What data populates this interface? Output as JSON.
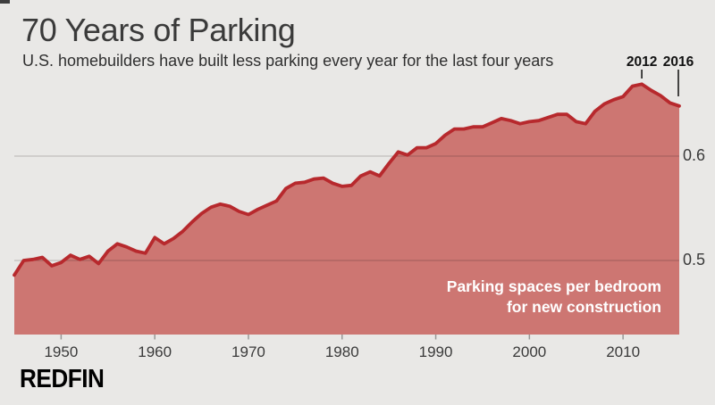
{
  "header": {
    "title": "70 Years of Parking",
    "subtitle": "U.S. homebuilders have built less parking every year for the last four years"
  },
  "overlay_note": {
    "line1": "Parking spaces per bedroom",
    "line2": "for new construction"
  },
  "branding": {
    "logo_text": "Redfin",
    "logo_display": "REDFIN",
    "logo_color": "#c3262c"
  },
  "chart_data": {
    "type": "area",
    "title": "70 Years of Parking",
    "subtitle": "U.S. homebuilders have built less parking every year for the last four years",
    "series_name": "Parking spaces per bedroom for new construction",
    "xlim": [
      1945,
      2016
    ],
    "ylim_shown_ticks": [
      0.5,
      0.6
    ],
    "grid": "horizontal",
    "legend": "none",
    "x_ticks": [
      1950,
      1960,
      1970,
      1980,
      1990,
      2000,
      2010
    ],
    "y_ticks": [
      0.5,
      0.6
    ],
    "y_tick_labels": [
      "0.5",
      "0.6"
    ],
    "annotations": [
      {
        "label": "2012",
        "year": 2012,
        "tick_length": 10
      },
      {
        "label": "2016",
        "year": 2016,
        "tick_length": 30
      }
    ],
    "years": [
      1945,
      1946,
      1947,
      1948,
      1949,
      1950,
      1951,
      1952,
      1953,
      1954,
      1955,
      1956,
      1957,
      1958,
      1959,
      1960,
      1961,
      1962,
      1963,
      1964,
      1965,
      1966,
      1967,
      1968,
      1969,
      1970,
      1971,
      1972,
      1973,
      1974,
      1975,
      1976,
      1977,
      1978,
      1979,
      1980,
      1981,
      1982,
      1983,
      1984,
      1985,
      1986,
      1987,
      1988,
      1989,
      1990,
      1991,
      1992,
      1993,
      1994,
      1995,
      1996,
      1997,
      1998,
      1999,
      2000,
      2001,
      2002,
      2003,
      2004,
      2005,
      2006,
      2007,
      2008,
      2009,
      2010,
      2011,
      2012,
      2013,
      2014,
      2015,
      2016
    ],
    "values": [
      0.486,
      0.5,
      0.501,
      0.503,
      0.495,
      0.498,
      0.505,
      0.501,
      0.504,
      0.497,
      0.509,
      0.516,
      0.513,
      0.509,
      0.507,
      0.522,
      0.516,
      0.521,
      0.528,
      0.537,
      0.545,
      0.551,
      0.554,
      0.552,
      0.547,
      0.544,
      0.549,
      0.553,
      0.557,
      0.569,
      0.574,
      0.575,
      0.578,
      0.579,
      0.574,
      0.571,
      0.572,
      0.581,
      0.585,
      0.581,
      0.593,
      0.604,
      0.601,
      0.608,
      0.608,
      0.612,
      0.62,
      0.626,
      0.626,
      0.628,
      0.628,
      0.632,
      0.636,
      0.634,
      0.631,
      0.633,
      0.634,
      0.637,
      0.64,
      0.64,
      0.633,
      0.631,
      0.643,
      0.65,
      0.654,
      0.657,
      0.667,
      0.669,
      0.663,
      0.658,
      0.651,
      0.648
    ],
    "colors": {
      "line": "#b7292d",
      "fill": "#cd7672",
      "background": "#e9e8e6",
      "gridline": "rgba(0,0,0,0.22)",
      "annotation": "#1a1a1a"
    }
  }
}
